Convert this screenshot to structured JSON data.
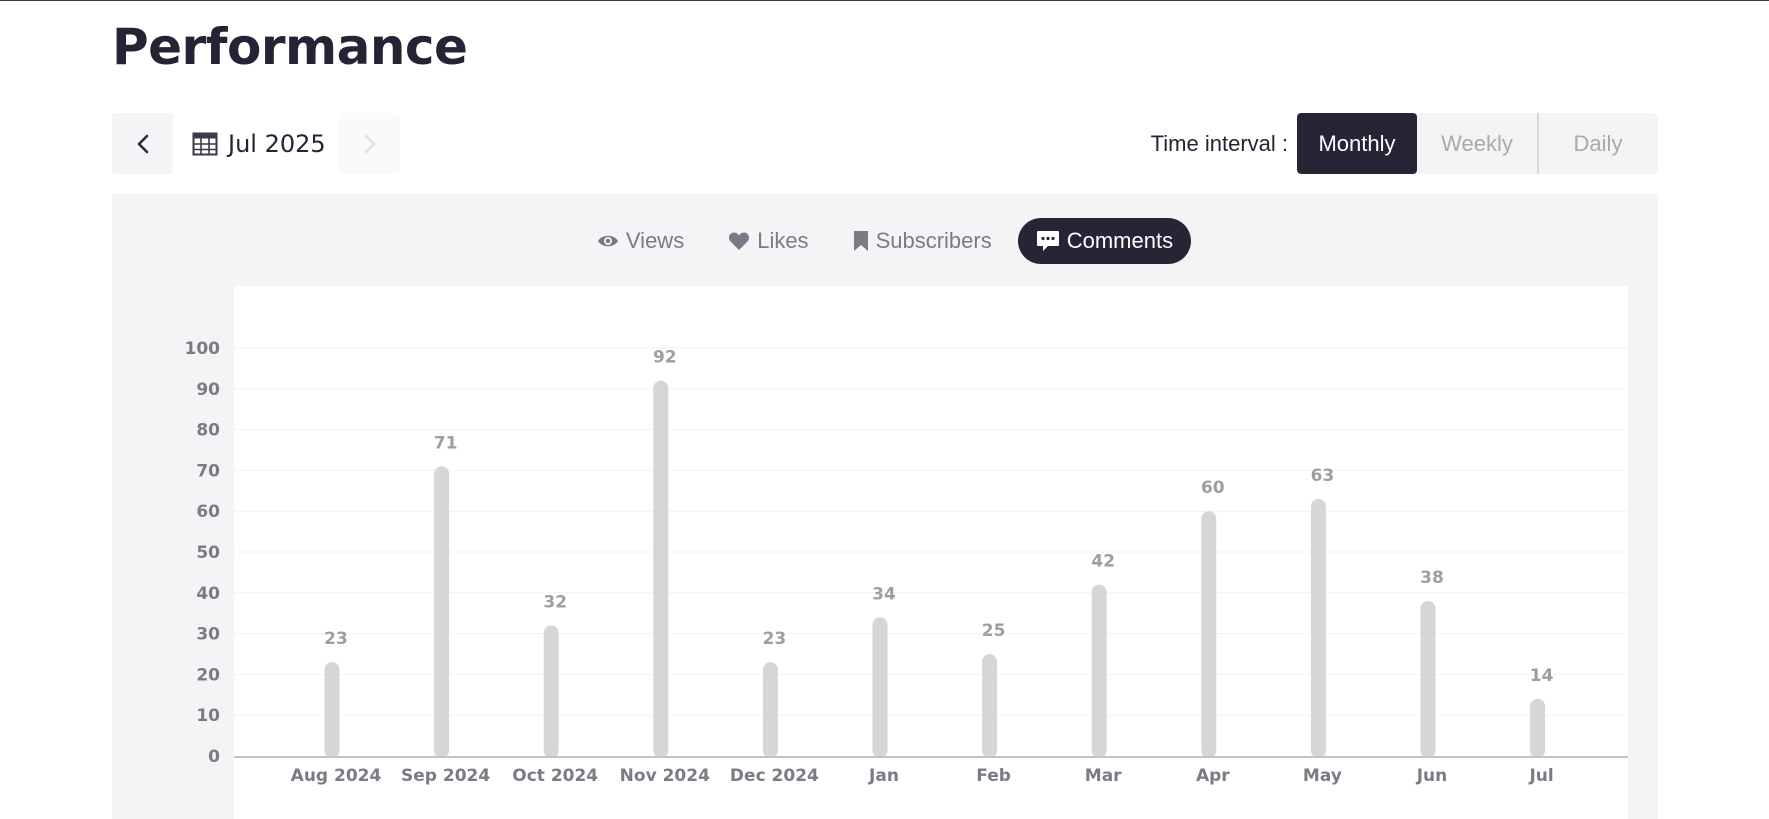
{
  "page": {
    "title": "Performance"
  },
  "date_nav": {
    "prev_icon": "chevron-left-icon",
    "next_icon": "chevron-right-icon",
    "calendar_icon": "calendar-icon",
    "current": "Jul 2025"
  },
  "time_interval": {
    "label": "Time interval :",
    "options": [
      "Monthly",
      "Weekly",
      "Daily"
    ],
    "selected": "Monthly"
  },
  "metrics": {
    "tabs": [
      {
        "label": "Views",
        "icon": "eye-icon"
      },
      {
        "label": "Likes",
        "icon": "heart-icon"
      },
      {
        "label": "Subscribers",
        "icon": "bookmark-icon"
      },
      {
        "label": "Comments",
        "icon": "comment-icon"
      }
    ],
    "selected": "Comments"
  },
  "colors": {
    "accent_dark": "#252536",
    "bar": "#d6d6d6",
    "panel_bg": "#f4f4f6"
  },
  "chart_data": {
    "type": "bar",
    "categories": [
      "Aug 2024",
      "Sep 2024",
      "Oct 2024",
      "Nov 2024",
      "Dec 2024",
      "Jan",
      "Feb",
      "Mar",
      "Apr",
      "May",
      "Jun",
      "Jul"
    ],
    "values": [
      23,
      71,
      32,
      92,
      23,
      34,
      25,
      42,
      60,
      63,
      38,
      14
    ],
    "yticks": [
      0,
      10,
      20,
      30,
      40,
      50,
      60,
      70,
      80,
      90,
      100
    ],
    "ylim": [
      0,
      100
    ],
    "grid": true,
    "data_labels": true
  }
}
